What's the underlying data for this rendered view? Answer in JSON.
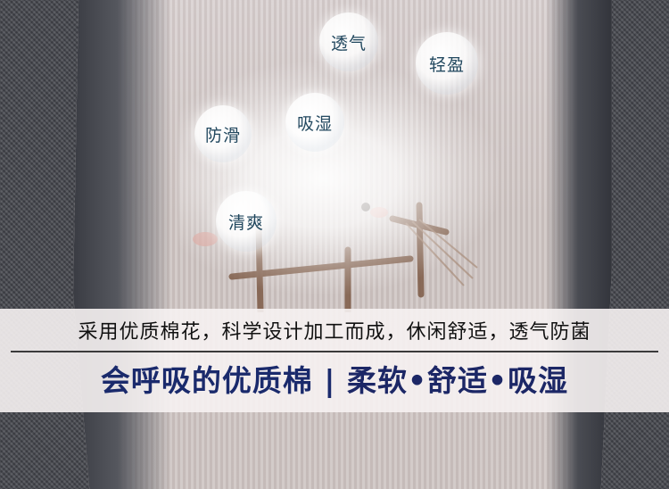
{
  "features": {
    "breathable": "透气",
    "lightweight": "轻盈",
    "anti_slip": "防滑",
    "absorbent": "吸湿",
    "refreshing": "清爽"
  },
  "caption": {
    "tagline": "采用优质棉花，科学设计加工而成，休闲舒适，透气防菌",
    "headline_main": "会呼吸的优质棉",
    "separator": "|",
    "headline_tail": "柔软•舒适•吸湿"
  },
  "colors": {
    "headline": "#1a2a6c",
    "bubble_text": "#22485f",
    "band": "#f6f2f2"
  }
}
